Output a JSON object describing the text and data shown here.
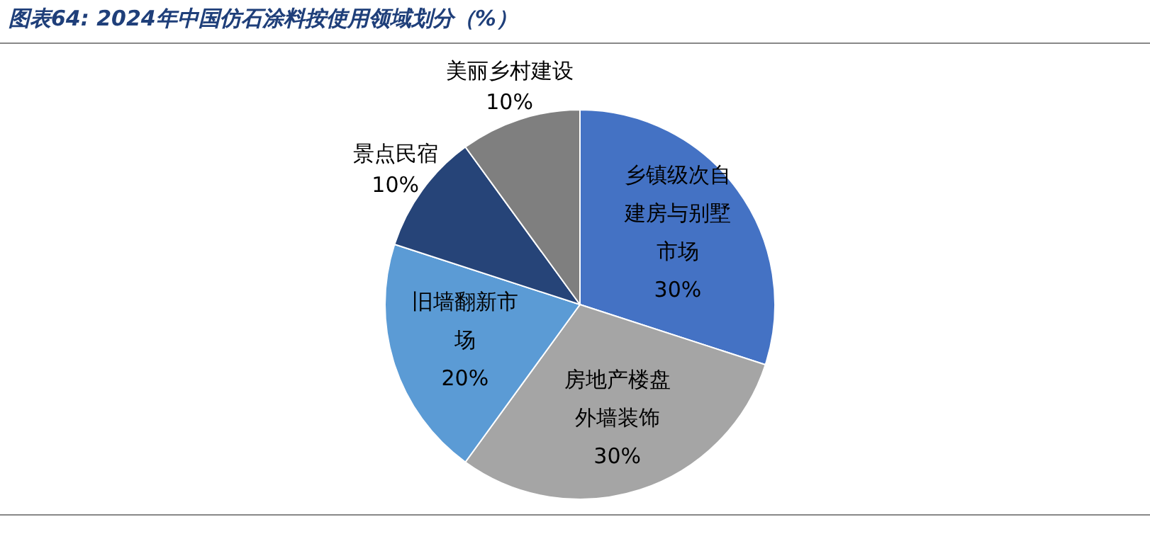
{
  "chart_data": {
    "type": "pie",
    "title": "图表64: 2024年中国仿石涂料按使用领域划分（%）",
    "categories": [
      "乡镇级次自建房与别墅市场",
      "房地产楼盘外墙装饰",
      "旧墙翻新市场",
      "景点民宿",
      "美丽乡村建设"
    ],
    "values": [
      30,
      30,
      20,
      10,
      10
    ],
    "colors": [
      "#4472c4",
      "#a5a5a5",
      "#5b9bd5",
      "#264478",
      "#7f7f7f"
    ],
    "value_labels": [
      "30%",
      "30%",
      "20%",
      "10%",
      "10%"
    ]
  }
}
